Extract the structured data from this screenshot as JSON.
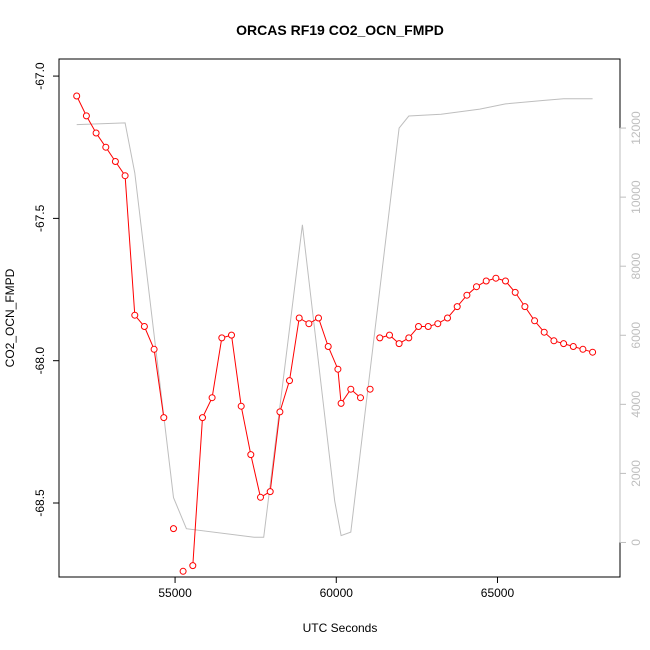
{
  "chart_data": {
    "type": "line",
    "title": "ORCAS RF19 CO2_OCN_FMPD",
    "xlabel": "UTC Seconds",
    "ylabel": "CO2_OCN_FMPD",
    "xlim": [
      51400,
      68800
    ],
    "ylim": [
      -68.76,
      -66.94
    ],
    "y2lim": [
      -1000,
      14000
    ],
    "x_ticks": [
      55000,
      60000,
      65000
    ],
    "x_tick_labels": [
      "55000",
      "60000",
      "65000"
    ],
    "y_ticks": [
      -68.5,
      -68.0,
      -67.5,
      -67.0
    ],
    "y_tick_labels": [
      "-68.5",
      "-68.0",
      "-67.5",
      "-67.0"
    ],
    "y2_ticks": [
      0,
      2000,
      4000,
      6000,
      8000,
      10000,
      12000
    ],
    "y2_tick_labels": [
      "0",
      "2000",
      "4000",
      "6000",
      "8000",
      "10000",
      "12000"
    ],
    "colors": {
      "primary": "#ff0000",
      "secondary": "#bebebe",
      "secondary_axis": "#bebebe"
    },
    "series": [
      {
        "axis": "left",
        "x": [
          51950,
          52250,
          52550,
          52850,
          53150,
          53450,
          53750,
          54050,
          54350,
          54650,
          54950,
          55250,
          55550,
          55850,
          56150,
          56450,
          56750,
          57050,
          57350,
          57650,
          57950,
          58250,
          58550,
          58850,
          59150,
          59450,
          59750,
          60050,
          60150,
          60450,
          60750,
          61050,
          61350,
          61650,
          61950,
          62250,
          62550,
          62850,
          63150,
          63450,
          63750,
          64050,
          64350,
          64650,
          64950,
          65250,
          65550,
          65850,
          66150,
          66450,
          66750,
          67050,
          67350,
          67650,
          67950
        ],
        "y": [
          -67.07,
          -67.14,
          -67.2,
          -67.25,
          -67.3,
          -67.35,
          -67.84,
          -67.88,
          -67.96,
          -68.2,
          -68.59,
          -68.74,
          -68.72,
          -68.2,
          -68.13,
          -67.92,
          -67.91,
          -68.16,
          -68.33,
          -68.48,
          -68.46,
          -68.18,
          -68.07,
          -67.85,
          -67.87,
          -67.85,
          -67.95,
          -68.03,
          -68.15,
          -68.1,
          -68.13,
          -68.1,
          -67.92,
          -67.91,
          -67.94,
          -67.92,
          -67.88,
          -67.88,
          -67.87,
          -67.85,
          -67.81,
          -67.77,
          -67.74,
          -67.72,
          -67.71,
          -67.72,
          -67.76,
          -67.81,
          -67.86,
          -67.9,
          -67.93,
          -67.94,
          -67.95,
          -67.96,
          -67.97
        ],
        "segments": [
          [
            0,
            10
          ],
          [
            12,
            31
          ],
          [
            32,
            55
          ]
        ]
      },
      {
        "axis": "right",
        "x": [
          51950,
          53450,
          53750,
          54950,
          55350,
          57450,
          57750,
          58950,
          59950,
          60150,
          60450,
          61950,
          62250,
          63250,
          64450,
          65250,
          66450,
          67050,
          67950
        ],
        "y": [
          12100,
          12150,
          10700,
          1300,
          400,
          150,
          150,
          9200,
          1200,
          200,
          300,
          12000,
          12350,
          12400,
          12550,
          12700,
          12800,
          12850,
          12850
        ]
      }
    ]
  }
}
